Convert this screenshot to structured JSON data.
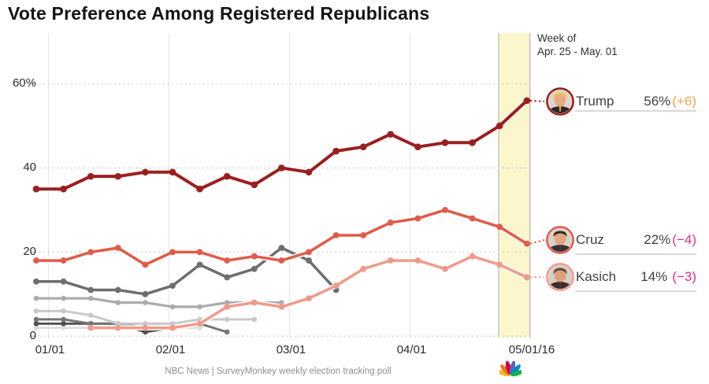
{
  "title": "Vote Preference Among Registered Republicans",
  "callout": {
    "line1": "Week of",
    "line2": "Apr. 25 - May. 01"
  },
  "legend": [
    {
      "name": "Trump",
      "value": "56%",
      "change": "(+6)",
      "change_color": "#f7a444",
      "ring": "#9b1f1f",
      "hair": "#e9c554",
      "skin": "#e8aa80",
      "suit": "#2b2b2b"
    },
    {
      "name": "Cruz",
      "value": "22%",
      "change": "(−4)",
      "change_color": "#ee2a7b",
      "ring": "#e05b49",
      "hair": "#38281f",
      "skin": "#e3a67d",
      "suit": "#30343c"
    },
    {
      "name": "Kasich",
      "value": "14%",
      "change": "(−3)",
      "change_color": "#ee2a7b",
      "ring": "#f09a8b",
      "hair": "#5f4c40",
      "skin": "#e0a077",
      "suit": "#33302e"
    }
  ],
  "footer": {
    "text": "NBC News | SurveyMonkey weekly election tracking poll",
    "logo": "nbc-peacock",
    "logo_colors": [
      "#f5b915",
      "#f37021",
      "#cc004c",
      "#6460aa",
      "#0089d0",
      "#0db14b"
    ]
  },
  "colors": {
    "highlight_band_fill": "#fbf6cc",
    "highlight_band_border": "#b9b9ac",
    "grid_dotted": "#d6d6d6",
    "grid_month": "#e6e6e6",
    "tick": "#c2c2c2"
  },
  "chart_data": {
    "type": "line",
    "title": "Vote Preference Among Registered Republicans",
    "x_axis": {
      "tick_labels": [
        "01/01",
        "02/01",
        "03/01",
        "04/01",
        "05/01/16"
      ],
      "unit": "weekly polls, 19 points from 01/01 to 05/01/16"
    },
    "y_axis": {
      "tick_labels": [
        "60%",
        "40",
        "20",
        "0"
      ],
      "tick_values": [
        60,
        40,
        20,
        0
      ],
      "range": [
        0,
        65
      ],
      "grid": "dotted"
    },
    "highlight_band": {
      "label": "Week of Apr. 25 - May. 01",
      "week_index_range": [
        17,
        18
      ]
    },
    "series": [
      {
        "name": "Trump",
        "color": "#9b1f1f",
        "width": 4,
        "values": [
          35,
          35,
          38,
          38,
          39,
          39,
          35,
          38,
          36,
          40,
          39,
          44,
          45,
          48,
          45,
          46,
          46,
          50,
          56
        ],
        "final_label": "56% (+6)"
      },
      {
        "name": "Cruz",
        "color": "#e05b49",
        "width": 3.5,
        "values": [
          18,
          18,
          20,
          21,
          17,
          20,
          20,
          18,
          19,
          18,
          20,
          24,
          24,
          27,
          28,
          30,
          28,
          26,
          22
        ],
        "final_label": "22% (−4)"
      },
      {
        "name": "Kasich",
        "color": "#f09a8b",
        "width": 3.5,
        "values": [
          null,
          null,
          2,
          2,
          2,
          2,
          3,
          7,
          8,
          7,
          9,
          12,
          16,
          18,
          18,
          16,
          19,
          17,
          14
        ],
        "final_label": "14% (−3)"
      },
      {
        "name": "unlabeled-gray-1",
        "color": "#6e6e6e",
        "width": 3.5,
        "values": [
          13,
          13,
          11,
          11,
          10,
          12,
          17,
          14,
          16,
          21,
          18,
          11
        ]
      },
      {
        "name": "unlabeled-gray-2",
        "color": "#ababab",
        "width": 3.2,
        "values": [
          9,
          9,
          9,
          8,
          8,
          7,
          7,
          8,
          8,
          8
        ]
      },
      {
        "name": "unlabeled-gray-3",
        "color": "#c9c9c9",
        "width": 3,
        "values": [
          6,
          6,
          5,
          3,
          3,
          3,
          4,
          4,
          4
        ]
      },
      {
        "name": "unlabeled-gray-4",
        "color": "#757575",
        "width": 3,
        "values": [
          4,
          4,
          3,
          3,
          2,
          2,
          3,
          1
        ]
      },
      {
        "name": "unlabeled-gray-5",
        "color": "#4f4f4f",
        "width": 2.8,
        "values": [
          3,
          3,
          3,
          3,
          1,
          2
        ]
      },
      {
        "name": "unlabeled-gray-6",
        "color": "#dedede",
        "width": 2.8,
        "values": [
          2,
          2,
          2,
          3,
          3,
          2,
          2
        ]
      }
    ]
  }
}
